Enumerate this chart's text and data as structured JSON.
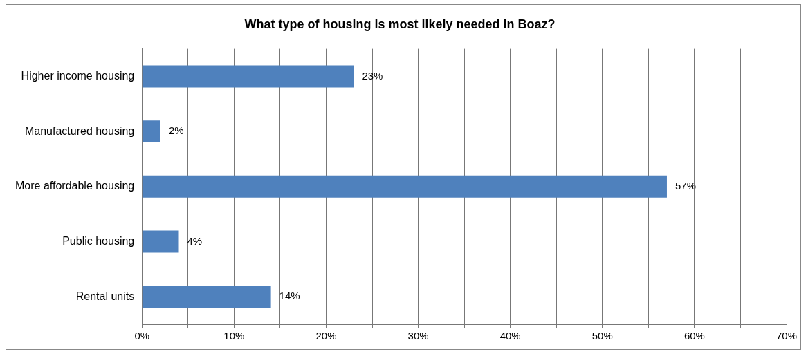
{
  "chart_data": {
    "type": "bar",
    "orientation": "horizontal",
    "title": "What type of housing is most likely needed in Boaz?",
    "categories": [
      "Higher income housing",
      "Manufactured housing",
      "More affordable housing",
      "Public housing",
      "Rental units"
    ],
    "values": [
      23,
      2,
      57,
      4,
      14
    ],
    "color": "#4f81bd",
    "value_labels": [
      "23%",
      "2%",
      "57%",
      "4%",
      "14%"
    ],
    "xlim": [
      0,
      70
    ],
    "xticks": [
      {
        "value": 0,
        "label": "0%"
      },
      {
        "value": 5,
        "label": null
      },
      {
        "value": 10,
        "label": "10%"
      },
      {
        "value": 15,
        "label": null
      },
      {
        "value": 20,
        "label": "20%"
      },
      {
        "value": 25,
        "label": null
      },
      {
        "value": 30,
        "label": "30%"
      },
      {
        "value": 35,
        "label": null
      },
      {
        "value": 40,
        "label": "40%"
      },
      {
        "value": 45,
        "label": null
      },
      {
        "value": 50,
        "label": "50%"
      },
      {
        "value": 55,
        "label": null
      },
      {
        "value": 60,
        "label": "60%"
      },
      {
        "value": 65,
        "label": null
      },
      {
        "value": 70,
        "label": "70%"
      }
    ],
    "grid": "x",
    "legend": false
  }
}
